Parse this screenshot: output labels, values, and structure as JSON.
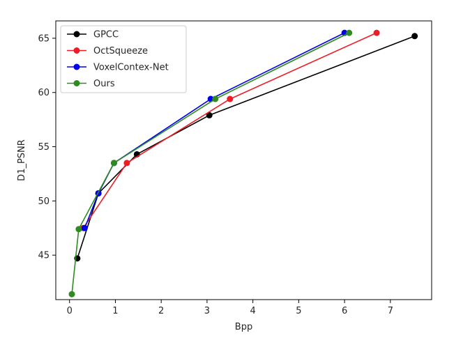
{
  "chart_data": {
    "type": "line",
    "title": "",
    "xlabel": "Bpp",
    "ylabel": "D1_PSNR",
    "xlim": [
      -0.3,
      7.9
    ],
    "ylim": [
      40.9,
      66.6
    ],
    "xticks": [
      0,
      1,
      2,
      3,
      4,
      5,
      6,
      7
    ],
    "yticks": [
      45,
      50,
      55,
      60,
      65
    ],
    "grid": false,
    "legend_position": "top-left",
    "series": [
      {
        "name": "GPCC",
        "color": "#000000",
        "points": [
          [
            0.17,
            44.7
          ],
          [
            0.63,
            50.7
          ],
          [
            1.47,
            54.3
          ],
          [
            3.05,
            57.9
          ],
          [
            7.53,
            65.2
          ]
        ]
      },
      {
        "name": "OctSqueeze",
        "color": "#ee1c25",
        "points": [
          [
            0.3,
            47.5
          ],
          [
            1.25,
            53.5
          ],
          [
            3.5,
            59.4
          ],
          [
            6.7,
            65.5
          ]
        ]
      },
      {
        "name": "VoxelContex-Net",
        "color": "#0000ee",
        "points": [
          [
            0.33,
            47.5
          ],
          [
            0.63,
            50.7
          ],
          [
            0.97,
            53.5
          ],
          [
            3.08,
            59.4
          ],
          [
            6.0,
            65.5
          ]
        ]
      },
      {
        "name": "Ours",
        "color": "#2e8b1f",
        "points": [
          [
            0.05,
            41.4
          ],
          [
            0.2,
            47.4
          ],
          [
            0.97,
            53.5
          ],
          [
            3.18,
            59.4
          ],
          [
            6.1,
            65.5
          ]
        ]
      }
    ]
  }
}
